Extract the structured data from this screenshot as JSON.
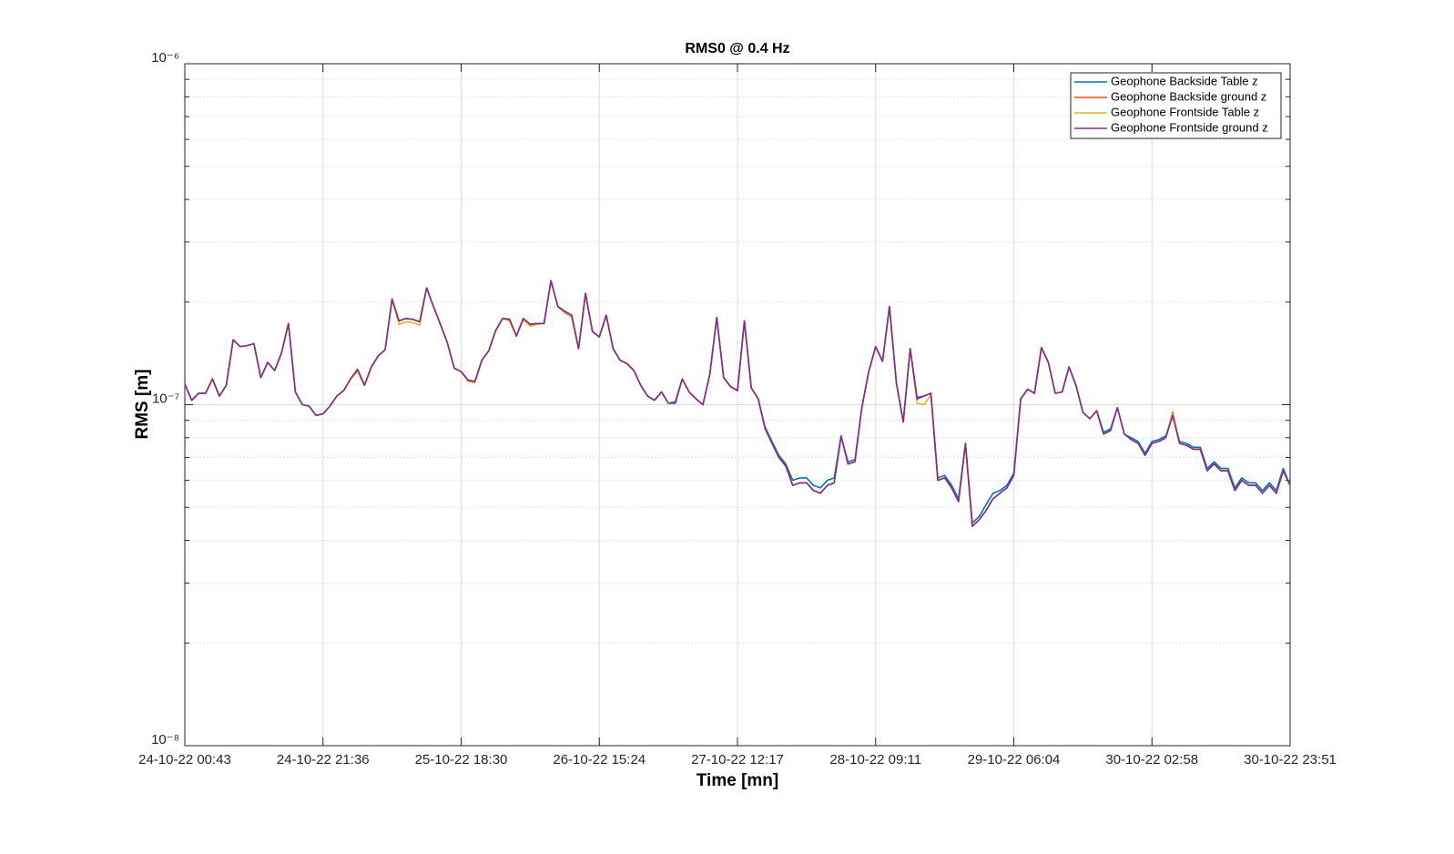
{
  "chart_data": {
    "type": "line",
    "title": "RMS0 @ 0.4 Hz",
    "x_label": "Time [mn]",
    "y_label": "RMS [m]",
    "categories": [
      "24-10-22 00:43",
      null,
      null,
      null,
      null,
      null,
      null,
      null,
      null,
      null,
      null,
      null,
      null,
      null,
      null,
      null,
      null,
      null,
      null,
      null,
      "24-10-22 21:36",
      null,
      null,
      null,
      null,
      null,
      null,
      null,
      null,
      null,
      null,
      null,
      null,
      null,
      null,
      null,
      null,
      null,
      null,
      null,
      "25-10-22 18:30",
      null,
      null,
      null,
      null,
      null,
      null,
      null,
      null,
      null,
      null,
      null,
      null,
      null,
      null,
      null,
      null,
      null,
      null,
      null,
      "26-10-22 15:24",
      null,
      null,
      null,
      null,
      null,
      null,
      null,
      null,
      null,
      null,
      null,
      null,
      null,
      null,
      null,
      null,
      null,
      null,
      null,
      "27-10-22 12:17",
      null,
      null,
      null,
      null,
      null,
      null,
      null,
      null,
      null,
      null,
      null,
      null,
      null,
      null,
      null,
      null,
      null,
      null,
      null,
      "28-10-22 09:11",
      null,
      null,
      null,
      null,
      null,
      null,
      null,
      null,
      null,
      null,
      null,
      null,
      null,
      null,
      null,
      null,
      null,
      null,
      null,
      "29-10-22 06:04",
      null,
      null,
      null,
      null,
      null,
      null,
      null,
      null,
      null,
      null,
      null,
      null,
      null,
      null,
      null,
      null,
      null,
      null,
      null,
      "30-10-22 02:58",
      null,
      null,
      null,
      null,
      null,
      null,
      null,
      null,
      null,
      null,
      null,
      null,
      null,
      null,
      null,
      null,
      null,
      null,
      null,
      "30-10-22 23:51"
    ],
    "series": [
      {
        "name": "Geophone Backside Table z",
        "color": "#0072bd",
        "values": [
          1.15e-07,
          1.03e-07,
          1.08e-07,
          1.08e-07,
          1.19e-07,
          1.06e-07,
          1.14e-07,
          1.55e-07,
          1.48e-07,
          1.49e-07,
          1.51e-07,
          1.2e-07,
          1.33e-07,
          1.26e-07,
          1.42e-07,
          1.73e-07,
          1.09e-07,
          1e-07,
          9.9e-08,
          9.3e-08,
          9.4e-08,
          9.9e-08,
          1.06e-07,
          1.1e-07,
          1.19e-07,
          1.27e-07,
          1.14e-07,
          1.29e-07,
          1.39e-07,
          1.45e-07,
          2.04e-07,
          1.76e-07,
          1.79e-07,
          1.78e-07,
          1.75e-07,
          2.2e-07,
          1.94e-07,
          1.72e-07,
          1.52e-07,
          1.28e-07,
          1.25e-07,
          1.18e-07,
          1.17e-07,
          1.35e-07,
          1.44e-07,
          1.65e-07,
          1.79e-07,
          1.78e-07,
          1.59e-07,
          1.79e-07,
          1.72e-07,
          1.73e-07,
          1.73e-07,
          2.31e-07,
          1.94e-07,
          1.88e-07,
          1.83e-07,
          1.46e-07,
          2.12e-07,
          1.64e-07,
          1.58e-07,
          1.83e-07,
          1.46e-07,
          1.35e-07,
          1.32e-07,
          1.26e-07,
          1.14e-07,
          1.06e-07,
          1.03e-07,
          1.09e-07,
          1.01e-07,
          1.02e-07,
          1.19e-07,
          1.09e-07,
          1.04e-07,
          1e-07,
          1.23e-07,
          1.8e-07,
          1.2e-07,
          1.13e-07,
          1.1e-07,
          1.76e-07,
          1.12e-07,
          1.04e-07,
          8.6e-08,
          7.8e-08,
          7.1e-08,
          6.7e-08,
          6e-08,
          6.1e-08,
          6.1e-08,
          5.8e-08,
          5.7e-08,
          6e-08,
          6.1e-08,
          8.1e-08,
          6.8e-08,
          6.9e-08,
          9.8e-08,
          1.25e-07,
          1.48e-07,
          1.34e-07,
          1.94e-07,
          1.16e-07,
          8.9e-08,
          1.46e-07,
          1.05e-07,
          1.06e-07,
          1.08e-07,
          6.1e-08,
          6.2e-08,
          5.8e-08,
          5.3e-08,
          7.7e-08,
          4.5e-08,
          4.7e-08,
          5.1e-08,
          5.5e-08,
          5.6e-08,
          5.8e-08,
          6.3e-08,
          1.04e-07,
          1.11e-07,
          1.08e-07,
          1.47e-07,
          1.33e-07,
          1.08e-07,
          1.09e-07,
          1.29e-07,
          1.14e-07,
          9.5e-08,
          9.1e-08,
          9.6e-08,
          8.3e-08,
          8.5e-08,
          9.8e-08,
          8.2e-08,
          8e-08,
          7.8e-08,
          7.2e-08,
          7.8e-08,
          7.9e-08,
          8.1e-08,
          9.3e-08,
          7.8e-08,
          7.7e-08,
          7.5e-08,
          7.5e-08,
          6.5e-08,
          6.8e-08,
          6.5e-08,
          6.5e-08,
          5.7e-08,
          6.1e-08,
          5.9e-08,
          5.9e-08,
          5.6e-08,
          5.9e-08,
          5.6e-08,
          6.5e-08,
          5.8e-08
        ]
      },
      {
        "name": "Geophone Backside ground z",
        "color": "#d95319",
        "values": [
          1.15e-07,
          1.03e-07,
          1.08e-07,
          1.08e-07,
          1.19e-07,
          1.06e-07,
          1.14e-07,
          1.55e-07,
          1.48e-07,
          1.49e-07,
          1.51e-07,
          1.2e-07,
          1.33e-07,
          1.26e-07,
          1.42e-07,
          1.73e-07,
          1.09e-07,
          1e-07,
          9.9e-08,
          9.3e-08,
          9.4e-08,
          9.9e-08,
          1.06e-07,
          1.1e-07,
          1.19e-07,
          1.27e-07,
          1.14e-07,
          1.29e-07,
          1.39e-07,
          1.45e-07,
          2.04e-07,
          1.76e-07,
          1.79e-07,
          1.78e-07,
          1.75e-07,
          2.2e-07,
          1.94e-07,
          1.72e-07,
          1.52e-07,
          1.28e-07,
          1.25e-07,
          1.18e-07,
          1.17e-07,
          1.35e-07,
          1.44e-07,
          1.65e-07,
          1.79e-07,
          1.78e-07,
          1.59e-07,
          1.79e-07,
          1.72e-07,
          1.73e-07,
          1.73e-07,
          2.31e-07,
          1.94e-07,
          1.86e-07,
          1.81e-07,
          1.46e-07,
          2.12e-07,
          1.64e-07,
          1.58e-07,
          1.83e-07,
          1.46e-07,
          1.35e-07,
          1.32e-07,
          1.26e-07,
          1.14e-07,
          1.06e-07,
          1.03e-07,
          1.09e-07,
          1.01e-07,
          1.01e-07,
          1.19e-07,
          1.09e-07,
          1.04e-07,
          1e-07,
          1.23e-07,
          1.8e-07,
          1.2e-07,
          1.13e-07,
          1.1e-07,
          1.76e-07,
          1.12e-07,
          1.04e-07,
          8.5e-08,
          7.7e-08,
          7e-08,
          6.6e-08,
          5.8e-08,
          5.9e-08,
          5.9e-08,
          5.6e-08,
          5.5e-08,
          5.8e-08,
          5.9e-08,
          8.1e-08,
          6.7e-08,
          6.8e-08,
          9.8e-08,
          1.25e-07,
          1.48e-07,
          1.34e-07,
          1.94e-07,
          1.16e-07,
          8.9e-08,
          1.46e-07,
          1.04e-07,
          1.06e-07,
          1.08e-07,
          6e-08,
          6.1e-08,
          5.7e-08,
          5.2e-08,
          7.7e-08,
          4.4e-08,
          4.6e-08,
          4.9e-08,
          5.3e-08,
          5.5e-08,
          5.7e-08,
          6.2e-08,
          1.04e-07,
          1.11e-07,
          1.08e-07,
          1.47e-07,
          1.33e-07,
          1.08e-07,
          1.09e-07,
          1.29e-07,
          1.14e-07,
          9.5e-08,
          9.1e-08,
          9.6e-08,
          8.2e-08,
          8.4e-08,
          9.8e-08,
          8.2e-08,
          7.9e-08,
          7.7e-08,
          7.1e-08,
          7.7e-08,
          7.8e-08,
          8e-08,
          9.5e-08,
          7.7e-08,
          7.6e-08,
          7.4e-08,
          7.4e-08,
          6.4e-08,
          6.7e-08,
          6.4e-08,
          6.4e-08,
          5.6e-08,
          6e-08,
          5.8e-08,
          5.8e-08,
          5.5e-08,
          5.8e-08,
          5.5e-08,
          6.4e-08,
          5.8e-08
        ]
      },
      {
        "name": "Geophone Frontside Table z",
        "color": "#edb120",
        "values": [
          1.15e-07,
          1.03e-07,
          1.08e-07,
          1.08e-07,
          1.19e-07,
          1.06e-07,
          1.14e-07,
          1.55e-07,
          1.48e-07,
          1.49e-07,
          1.51e-07,
          1.2e-07,
          1.33e-07,
          1.26e-07,
          1.42e-07,
          1.73e-07,
          1.09e-07,
          1e-07,
          9.9e-08,
          9.3e-08,
          9.4e-08,
          9.9e-08,
          1.06e-07,
          1.1e-07,
          1.19e-07,
          1.25e-07,
          1.14e-07,
          1.29e-07,
          1.39e-07,
          1.45e-07,
          2.04e-07,
          1.72e-07,
          1.75e-07,
          1.74e-07,
          1.71e-07,
          2.2e-07,
          1.94e-07,
          1.72e-07,
          1.52e-07,
          1.28e-07,
          1.25e-07,
          1.17e-07,
          1.16e-07,
          1.35e-07,
          1.44e-07,
          1.65e-07,
          1.79e-07,
          1.76e-07,
          1.59e-07,
          1.77e-07,
          1.7e-07,
          1.72e-07,
          1.73e-07,
          2.31e-07,
          1.94e-07,
          1.87e-07,
          1.81e-07,
          1.46e-07,
          2.12e-07,
          1.64e-07,
          1.58e-07,
          1.83e-07,
          1.46e-07,
          1.35e-07,
          1.32e-07,
          1.26e-07,
          1.14e-07,
          1.06e-07,
          1.03e-07,
          1.09e-07,
          1.01e-07,
          1.01e-07,
          1.19e-07,
          1.09e-07,
          1.04e-07,
          1e-07,
          1.23e-07,
          1.8e-07,
          1.2e-07,
          1.13e-07,
          1.1e-07,
          1.76e-07,
          1.12e-07,
          1.04e-07,
          8.5e-08,
          7.7e-08,
          7e-08,
          6.6e-08,
          5.8e-08,
          5.9e-08,
          5.9e-08,
          5.6e-08,
          5.5e-08,
          5.8e-08,
          5.9e-08,
          8.1e-08,
          6.7e-08,
          6.8e-08,
          9.8e-08,
          1.25e-07,
          1.48e-07,
          1.34e-07,
          1.94e-07,
          1.16e-07,
          8.9e-08,
          1.46e-07,
          1.01e-07,
          1e-07,
          1.07e-07,
          6e-08,
          6.1e-08,
          5.7e-08,
          5.2e-08,
          7.7e-08,
          4.4e-08,
          4.6e-08,
          4.9e-08,
          5.3e-08,
          5.5e-08,
          5.7e-08,
          6.2e-08,
          1.04e-07,
          1.11e-07,
          1.08e-07,
          1.47e-07,
          1.33e-07,
          1.08e-07,
          1.09e-07,
          1.29e-07,
          1.14e-07,
          9.5e-08,
          9.1e-08,
          9.6e-08,
          8.2e-08,
          8.4e-08,
          9.8e-08,
          8.2e-08,
          7.9e-08,
          7.7e-08,
          7.1e-08,
          7.7e-08,
          7.8e-08,
          8e-08,
          9.4e-08,
          7.7e-08,
          7.6e-08,
          7.4e-08,
          7.4e-08,
          6.4e-08,
          6.7e-08,
          6.4e-08,
          6.4e-08,
          5.6e-08,
          6e-08,
          5.8e-08,
          5.8e-08,
          5.5e-08,
          5.8e-08,
          5.5e-08,
          6.4e-08,
          5.8e-08
        ]
      },
      {
        "name": "Geophone Frontside ground z",
        "color": "#7e2f8e",
        "values": [
          1.15e-07,
          1.03e-07,
          1.08e-07,
          1.08e-07,
          1.19e-07,
          1.06e-07,
          1.14e-07,
          1.55e-07,
          1.48e-07,
          1.49e-07,
          1.51e-07,
          1.2e-07,
          1.33e-07,
          1.26e-07,
          1.42e-07,
          1.73e-07,
          1.09e-07,
          1e-07,
          9.9e-08,
          9.3e-08,
          9.4e-08,
          9.9e-08,
          1.06e-07,
          1.1e-07,
          1.19e-07,
          1.27e-07,
          1.14e-07,
          1.29e-07,
          1.39e-07,
          1.45e-07,
          2.04e-07,
          1.76e-07,
          1.79e-07,
          1.78e-07,
          1.75e-07,
          2.2e-07,
          1.94e-07,
          1.72e-07,
          1.52e-07,
          1.28e-07,
          1.25e-07,
          1.18e-07,
          1.17e-07,
          1.35e-07,
          1.44e-07,
          1.65e-07,
          1.79e-07,
          1.78e-07,
          1.59e-07,
          1.79e-07,
          1.72e-07,
          1.73e-07,
          1.73e-07,
          2.31e-07,
          1.94e-07,
          1.88e-07,
          1.83e-07,
          1.46e-07,
          2.12e-07,
          1.64e-07,
          1.58e-07,
          1.83e-07,
          1.46e-07,
          1.35e-07,
          1.32e-07,
          1.26e-07,
          1.14e-07,
          1.06e-07,
          1.03e-07,
          1.09e-07,
          1.01e-07,
          1.01e-07,
          1.19e-07,
          1.09e-07,
          1.04e-07,
          1e-07,
          1.23e-07,
          1.8e-07,
          1.2e-07,
          1.13e-07,
          1.1e-07,
          1.76e-07,
          1.12e-07,
          1.04e-07,
          8.5e-08,
          7.7e-08,
          7e-08,
          6.6e-08,
          5.8e-08,
          5.9e-08,
          5.9e-08,
          5.6e-08,
          5.5e-08,
          5.8e-08,
          5.9e-08,
          8.1e-08,
          6.7e-08,
          6.8e-08,
          9.8e-08,
          1.25e-07,
          1.48e-07,
          1.34e-07,
          1.94e-07,
          1.16e-07,
          8.9e-08,
          1.46e-07,
          1.04e-07,
          1.06e-07,
          1.08e-07,
          6e-08,
          6.1e-08,
          5.7e-08,
          5.2e-08,
          7.7e-08,
          4.4e-08,
          4.6e-08,
          4.9e-08,
          5.3e-08,
          5.5e-08,
          5.7e-08,
          6.2e-08,
          1.04e-07,
          1.11e-07,
          1.08e-07,
          1.47e-07,
          1.33e-07,
          1.08e-07,
          1.09e-07,
          1.29e-07,
          1.14e-07,
          9.5e-08,
          9.1e-08,
          9.6e-08,
          8.2e-08,
          8.4e-08,
          9.8e-08,
          8.2e-08,
          7.9e-08,
          7.7e-08,
          7.1e-08,
          7.7e-08,
          7.8e-08,
          8e-08,
          9.3e-08,
          7.7e-08,
          7.6e-08,
          7.4e-08,
          7.4e-08,
          6.4e-08,
          6.7e-08,
          6.4e-08,
          6.4e-08,
          5.6e-08,
          6e-08,
          5.8e-08,
          5.8e-08,
          5.5e-08,
          5.8e-08,
          5.5e-08,
          6.4e-08,
          5.8e-08
        ]
      }
    ],
    "ylim": [
      1e-08,
      1e-06
    ],
    "yticks": [
      {
        "value": 1e-08,
        "label": "10⁻⁸"
      },
      {
        "value": 1e-07,
        "label": "10⁻⁷"
      },
      {
        "value": 1e-06,
        "label": "10⁻⁶"
      }
    ],
    "log_y": true,
    "grid": true,
    "minor_grid": true,
    "legend": "northeast"
  }
}
